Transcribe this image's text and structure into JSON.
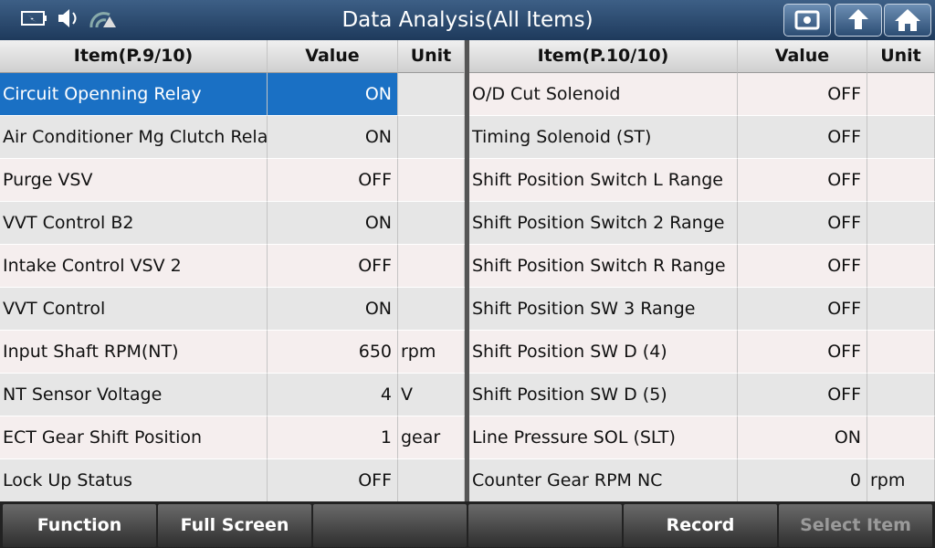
{
  "header": {
    "title": "Data Analysis(All Items)"
  },
  "tables": [
    {
      "columns": [
        "Item(P.9/10)",
        "Value",
        "Unit"
      ],
      "rows": [
        {
          "item": "Circuit Openning Relay",
          "value": "ON",
          "selected": true
        },
        {
          "item": "Air Conditioner Mg Clutch Relay",
          "value": "ON"
        },
        {
          "item": "Purge VSV",
          "value": "OFF"
        },
        {
          "item": "VVT Control B2",
          "value": "ON"
        },
        {
          "item": "Intake Control VSV 2",
          "value": "OFF"
        },
        {
          "item": "VVT Control",
          "value": "ON"
        },
        {
          "item": "Input Shaft RPM(NT)",
          "value": "650",
          "unit": "rpm"
        },
        {
          "item": "NT Sensor Voltage",
          "value": "4",
          "unit": "V"
        },
        {
          "item": "ECT Gear Shift Position",
          "value": "1",
          "unit": "gear"
        },
        {
          "item": "Lock Up Status",
          "value": "OFF"
        }
      ]
    },
    {
      "columns": [
        "Item(P.10/10)",
        "Value",
        "Unit"
      ],
      "rows": [
        {
          "item": "O/D Cut Solenoid",
          "value": "OFF"
        },
        {
          "item": "Timing Solenoid (ST)",
          "value": "OFF"
        },
        {
          "item": "Shift Position Switch L Range",
          "value": "OFF"
        },
        {
          "item": "Shift Position Switch 2 Range",
          "value": "OFF"
        },
        {
          "item": "Shift Position Switch R Range",
          "value": "OFF"
        },
        {
          "item": "Shift Position SW 3 Range",
          "value": "OFF"
        },
        {
          "item": "Shift Position SW D (4)",
          "value": "OFF"
        },
        {
          "item": "Shift Position SW D (5)",
          "value": "OFF"
        },
        {
          "item": "Line Pressure SOL (SLT)",
          "value": "ON"
        },
        {
          "item": "Counter Gear RPM NC",
          "value": "0",
          "unit": "rpm"
        }
      ]
    }
  ],
  "footer": {
    "buttons": [
      "Function",
      "Full Screen",
      "Record",
      "Select Item"
    ]
  }
}
